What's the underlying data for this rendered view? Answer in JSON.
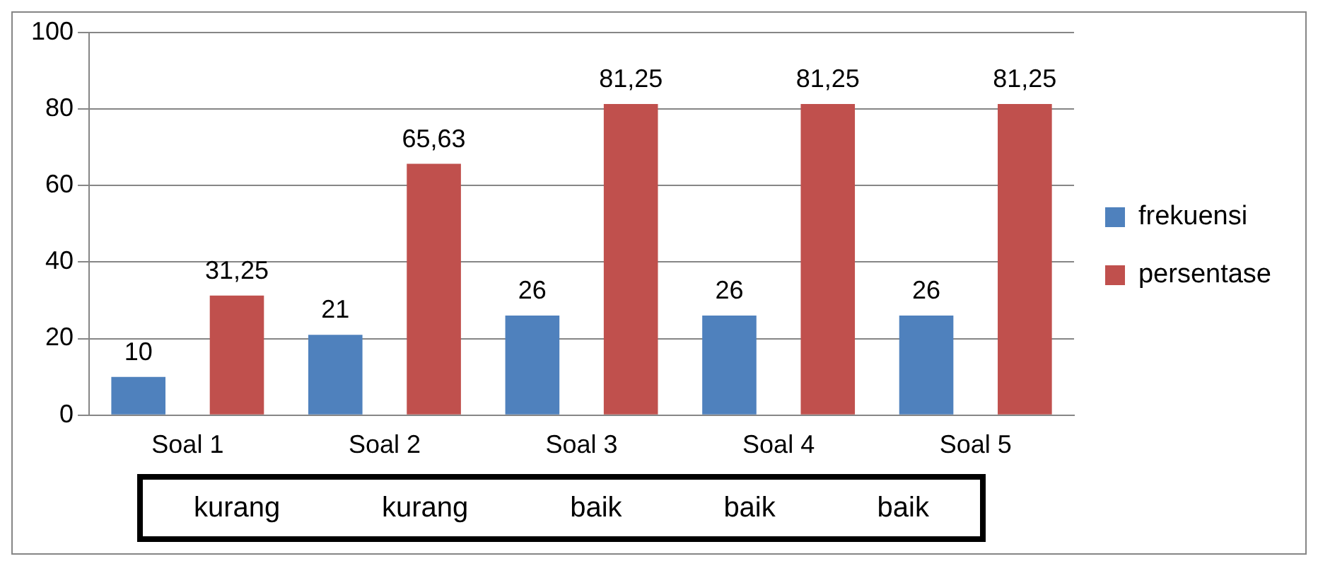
{
  "chart_data": {
    "type": "bar",
    "categories": [
      "Soal 1",
      "Soal 2",
      "Soal 3",
      "Soal 4",
      "Soal 5"
    ],
    "series": [
      {
        "name": "frekuensi",
        "color": "#4f81bd",
        "values": [
          10,
          21,
          26,
          26,
          26
        ],
        "value_labels": [
          "10",
          "21",
          "26",
          "26",
          "26"
        ]
      },
      {
        "name": "persentase",
        "color": "#c0504d",
        "values": [
          31.25,
          65.63,
          81.25,
          81.25,
          81.25
        ],
        "value_labels": [
          "31,25",
          "65,63",
          "81,25",
          "81,25",
          "81,25"
        ]
      }
    ],
    "ylim": [
      0,
      100
    ],
    "yticks": [
      0,
      20,
      40,
      60,
      80,
      100
    ],
    "grid": "y",
    "legend": "right",
    "annotations": [
      "kurang",
      "kurang",
      "baik",
      "baik",
      "baik"
    ]
  }
}
